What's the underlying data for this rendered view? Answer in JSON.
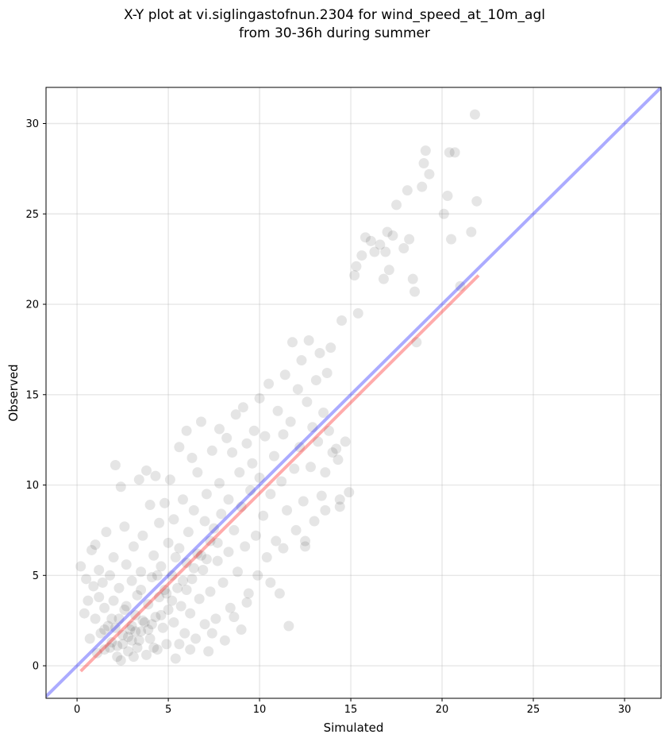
{
  "chart_data": {
    "type": "scatter",
    "title_line1": "X-Y plot at vi.siglingastofnun.2304 for wind_speed_at_10m_agl",
    "title_line2": "from 30-36h during summer",
    "xlabel": "Simulated",
    "ylabel": "Observed",
    "xlim": [
      -1.7,
      32
    ],
    "ylim": [
      -1.8,
      32
    ],
    "xticks": [
      0,
      5,
      10,
      15,
      20,
      25,
      30
    ],
    "yticks": [
      0,
      5,
      10,
      15,
      20,
      25,
      30
    ],
    "grid": true,
    "point_color": "#000000",
    "identity_line": {
      "color": "#0000ff",
      "from": [
        -1.7,
        -1.7
      ],
      "to": [
        32,
        32
      ]
    },
    "fit_line": {
      "color": "#ff0000",
      "from": [
        0.2,
        -0.3
      ],
      "to": [
        22,
        21.6
      ]
    },
    "points": [
      [
        0.2,
        5.5
      ],
      [
        0.4,
        2.9
      ],
      [
        0.5,
        4.8
      ],
      [
        0.6,
        3.6
      ],
      [
        0.7,
        1.5
      ],
      [
        0.8,
        6.4
      ],
      [
        0.9,
        4.4
      ],
      [
        1.0,
        6.7
      ],
      [
        1.0,
        2.6
      ],
      [
        1.1,
        0.7
      ],
      [
        1.2,
        3.8
      ],
      [
        1.2,
        5.3
      ],
      [
        1.3,
        1.8
      ],
      [
        1.4,
        4.6
      ],
      [
        1.5,
        0.9
      ],
      [
        1.5,
        3.2
      ],
      [
        1.6,
        7.4
      ],
      [
        1.7,
        2.2
      ],
      [
        1.8,
        5.0
      ],
      [
        1.9,
        1.3
      ],
      [
        2.0,
        3.6
      ],
      [
        2.0,
        6.0
      ],
      [
        2.1,
        11.1
      ],
      [
        2.2,
        0.5
      ],
      [
        2.3,
        2.6
      ],
      [
        2.3,
        4.3
      ],
      [
        2.4,
        9.9
      ],
      [
        2.5,
        1.7
      ],
      [
        2.6,
        7.7
      ],
      [
        2.6,
        3.1
      ],
      [
        2.7,
        5.6
      ],
      [
        2.8,
        0.8
      ],
      [
        2.9,
        2.0
      ],
      [
        3.0,
        4.7
      ],
      [
        3.0,
        1.4
      ],
      [
        3.1,
        6.6
      ],
      [
        3.2,
        2.8
      ],
      [
        3.3,
        1.0
      ],
      [
        3.3,
        3.9
      ],
      [
        3.4,
        10.3
      ],
      [
        3.5,
        1.9
      ],
      [
        3.5,
        5.2
      ],
      [
        3.6,
        7.2
      ],
      [
        3.7,
        2.4
      ],
      [
        3.8,
        0.6
      ],
      [
        3.8,
        10.8
      ],
      [
        3.9,
        3.4
      ],
      [
        4.0,
        8.9
      ],
      [
        4.0,
        1.5
      ],
      [
        4.1,
        4.9
      ],
      [
        4.2,
        6.1
      ],
      [
        4.3,
        2.7
      ],
      [
        4.3,
        10.5
      ],
      [
        4.4,
        0.9
      ],
      [
        4.5,
        3.8
      ],
      [
        4.5,
        7.9
      ],
      [
        4.6,
        5.5
      ],
      [
        4.7,
        2.1
      ],
      [
        4.8,
        9.0
      ],
      [
        4.8,
        4.2
      ],
      [
        4.9,
        1.2
      ],
      [
        5.0,
        6.8
      ],
      [
        5.0,
        3.1
      ],
      [
        5.1,
        10.3
      ],
      [
        5.2,
        5.0
      ],
      [
        5.3,
        2.4
      ],
      [
        5.3,
        8.1
      ],
      [
        5.4,
        0.4
      ],
      [
        5.5,
        4.3
      ],
      [
        5.6,
        6.5
      ],
      [
        5.6,
        12.1
      ],
      [
        5.7,
        3.3
      ],
      [
        5.8,
        9.2
      ],
      [
        5.9,
        1.8
      ],
      [
        6.0,
        5.7
      ],
      [
        6.0,
        13.0
      ],
      [
        6.1,
        7.4
      ],
      [
        6.2,
        2.9
      ],
      [
        6.3,
        11.5
      ],
      [
        6.3,
        4.8
      ],
      [
        6.4,
        8.6
      ],
      [
        6.5,
        1.5
      ],
      [
        6.6,
        6.2
      ],
      [
        6.6,
        10.7
      ],
      [
        6.7,
        3.7
      ],
      [
        6.8,
        13.5
      ],
      [
        6.9,
        5.3
      ],
      [
        7.0,
        8.0
      ],
      [
        7.0,
        2.3
      ],
      [
        7.1,
        9.5
      ],
      [
        7.2,
        0.8
      ],
      [
        7.3,
        6.9
      ],
      [
        7.3,
        4.1
      ],
      [
        7.4,
        11.9
      ],
      [
        7.5,
        7.6
      ],
      [
        7.6,
        2.6
      ],
      [
        7.7,
        5.8
      ],
      [
        7.8,
        10.1
      ],
      [
        7.8,
        13.1
      ],
      [
        7.9,
        8.4
      ],
      [
        8.0,
        4.6
      ],
      [
        8.1,
        1.4
      ],
      [
        8.2,
        12.6
      ],
      [
        8.3,
        6.3
      ],
      [
        8.3,
        9.2
      ],
      [
        8.4,
        3.2
      ],
      [
        8.5,
        11.8
      ],
      [
        8.6,
        7.5
      ],
      [
        8.7,
        13.9
      ],
      [
        8.8,
        5.2
      ],
      [
        8.9,
        10.7
      ],
      [
        9.0,
        8.8
      ],
      [
        9.0,
        2.0
      ],
      [
        9.1,
        14.3
      ],
      [
        9.2,
        6.6
      ],
      [
        9.3,
        12.3
      ],
      [
        9.4,
        4.0
      ],
      [
        9.5,
        9.7
      ],
      [
        9.6,
        11.2
      ],
      [
        9.7,
        13.0
      ],
      [
        9.8,
        7.2
      ],
      [
        9.9,
        5.0
      ],
      [
        10.0,
        10.4
      ],
      [
        10.0,
        14.8
      ],
      [
        10.2,
        8.3
      ],
      [
        10.3,
        12.7
      ],
      [
        10.4,
        6.0
      ],
      [
        10.5,
        15.6
      ],
      [
        10.6,
        9.5
      ],
      [
        10.8,
        11.6
      ],
      [
        10.9,
        6.9
      ],
      [
        11.0,
        14.1
      ],
      [
        11.1,
        4.0
      ],
      [
        11.2,
        10.2
      ],
      [
        11.3,
        12.8
      ],
      [
        11.4,
        16.1
      ],
      [
        11.5,
        8.6
      ],
      [
        11.6,
        2.2
      ],
      [
        11.7,
        13.5
      ],
      [
        11.8,
        17.9
      ],
      [
        11.9,
        10.9
      ],
      [
        12.0,
        7.5
      ],
      [
        12.1,
        15.3
      ],
      [
        12.2,
        12.1
      ],
      [
        12.3,
        16.9
      ],
      [
        12.4,
        9.1
      ],
      [
        12.5,
        6.6
      ],
      [
        12.6,
        14.6
      ],
      [
        12.7,
        18.0
      ],
      [
        12.8,
        11.0
      ],
      [
        12.9,
        13.2
      ],
      [
        13.0,
        8.0
      ],
      [
        13.1,
        15.8
      ],
      [
        13.2,
        12.4
      ],
      [
        13.3,
        17.3
      ],
      [
        13.4,
        9.4
      ],
      [
        13.5,
        14.0
      ],
      [
        13.6,
        10.7
      ],
      [
        13.7,
        16.2
      ],
      [
        13.8,
        13.0
      ],
      [
        13.9,
        17.6
      ],
      [
        14.0,
        11.8
      ],
      [
        14.2,
        12.0
      ],
      [
        14.3,
        11.4
      ],
      [
        14.4,
        9.2
      ],
      [
        14.5,
        19.1
      ],
      [
        14.7,
        12.4
      ],
      [
        14.9,
        9.6
      ],
      [
        15.2,
        21.6
      ],
      [
        15.3,
        22.1
      ],
      [
        15.4,
        19.5
      ],
      [
        15.6,
        22.7
      ],
      [
        15.8,
        23.7
      ],
      [
        16.1,
        23.5
      ],
      [
        16.3,
        22.9
      ],
      [
        16.6,
        23.3
      ],
      [
        16.8,
        21.4
      ],
      [
        16.9,
        22.9
      ],
      [
        17.0,
        24.0
      ],
      [
        17.1,
        21.9
      ],
      [
        17.3,
        23.8
      ],
      [
        17.5,
        25.5
      ],
      [
        17.9,
        23.1
      ],
      [
        18.1,
        26.3
      ],
      [
        18.2,
        23.6
      ],
      [
        18.4,
        21.4
      ],
      [
        18.5,
        20.7
      ],
      [
        18.6,
        17.9
      ],
      [
        18.9,
        26.5
      ],
      [
        19.0,
        27.8
      ],
      [
        19.1,
        28.5
      ],
      [
        19.3,
        27.2
      ],
      [
        20.1,
        25.0
      ],
      [
        20.3,
        26.0
      ],
      [
        20.5,
        23.6
      ],
      [
        20.4,
        28.4
      ],
      [
        20.7,
        28.4
      ],
      [
        21.0,
        21.0
      ],
      [
        21.6,
        24.0
      ],
      [
        21.9,
        25.7
      ],
      [
        21.8,
        30.5
      ],
      [
        2.2,
        1.1
      ],
      [
        2.8,
        1.6
      ],
      [
        3.2,
        1.9
      ],
      [
        3.6,
        2.5
      ],
      [
        2.5,
        1.2
      ],
      [
        3.0,
        2.2
      ],
      [
        3.4,
        1.4
      ],
      [
        1.8,
        1.0
      ],
      [
        2.1,
        2.1
      ],
      [
        4.6,
        2.8
      ],
      [
        5.2,
        3.6
      ],
      [
        4.1,
        2.3
      ],
      [
        4.9,
        4.0
      ],
      [
        5.8,
        4.7
      ],
      [
        6.4,
        5.4
      ],
      [
        7.1,
        5.9
      ],
      [
        7.7,
        6.8
      ],
      [
        6.8,
        6.1
      ],
      [
        6.0,
        4.2
      ],
      [
        1.5,
        2.0
      ],
      [
        1.9,
        2.6
      ],
      [
        2.7,
        3.3
      ],
      [
        3.5,
        4.2
      ],
      [
        4.4,
        5.0
      ],
      [
        5.4,
        6.0
      ],
      [
        3.9,
        2.0
      ],
      [
        4.2,
        1.0
      ],
      [
        2.4,
        0.3
      ],
      [
        3.1,
        0.5
      ],
      [
        5.6,
        1.2
      ],
      [
        6.2,
        0.9
      ],
      [
        7.4,
        1.8
      ],
      [
        8.6,
        2.7
      ],
      [
        9.3,
        3.5
      ],
      [
        10.6,
        4.6
      ],
      [
        11.3,
        6.5
      ],
      [
        12.5,
        6.9
      ],
      [
        13.6,
        8.6
      ],
      [
        14.4,
        8.8
      ]
    ]
  }
}
